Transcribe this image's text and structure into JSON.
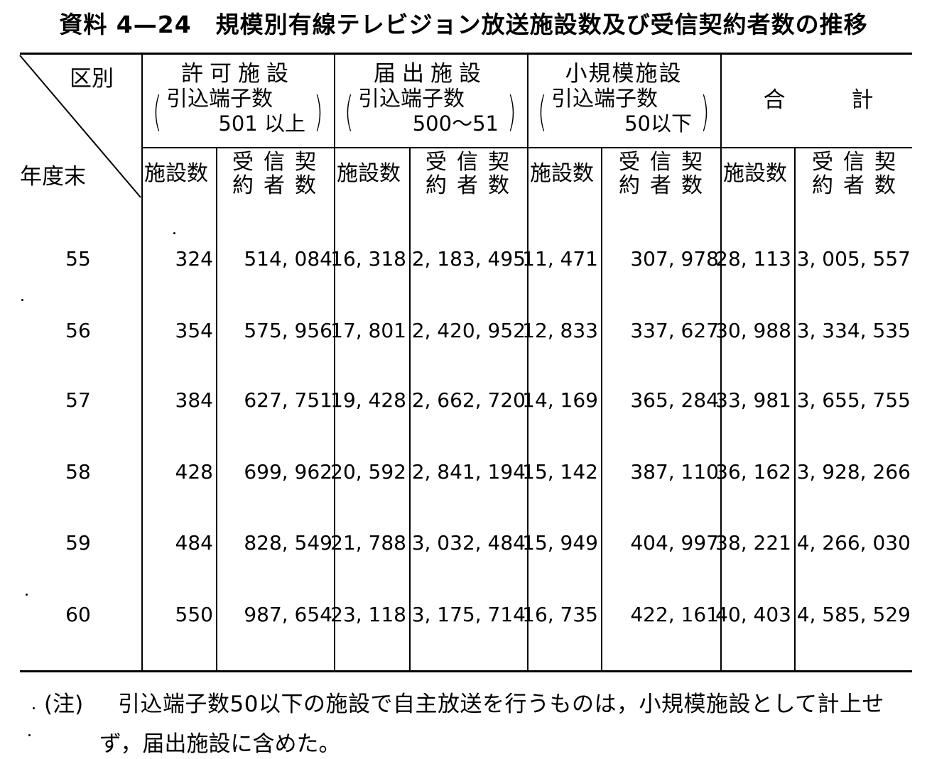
{
  "title": "資料 4—24　規模別有線テレビジョン放送施設数及び受信契約者数の推移",
  "header": {
    "corner_top": "区別",
    "corner_bottom": "年度末",
    "groups": [
      {
        "name": "許可施設",
        "sub1": "引込端子数",
        "sub2": "501 以上"
      },
      {
        "name": "届出施設",
        "sub1": "引込端子数",
        "sub2": "500〜51"
      },
      {
        "name": "小規模施設",
        "sub1": "引込端子数",
        "sub2": "50以下"
      },
      {
        "name": "合　　　計"
      }
    ],
    "col_facilities": "施設数",
    "col_subscribers_top": "受信契",
    "col_subscribers_bottom": "約者数"
  },
  "rows": [
    {
      "year": "55",
      "v": [
        "324",
        "514, 084",
        "16, 318",
        "2, 183, 495",
        "11, 471",
        "307, 978",
        "28, 113",
        "3, 005, 557"
      ]
    },
    {
      "year": "56",
      "v": [
        "354",
        "575, 956",
        "17, 801",
        "2, 420, 952",
        "12, 833",
        "337, 627",
        "30, 988",
        "3, 334, 535"
      ]
    },
    {
      "year": "57",
      "v": [
        "384",
        "627, 751",
        "19, 428",
        "2, 662, 720",
        "14, 169",
        "365, 284",
        "33, 981",
        "3, 655, 755"
      ]
    },
    {
      "year": "58",
      "v": [
        "428",
        "699, 962",
        "20, 592",
        "2, 841, 194",
        "15, 142",
        "387, 110",
        "36, 162",
        "3, 928, 266"
      ]
    },
    {
      "year": "59",
      "v": [
        "484",
        "828, 549",
        "21, 788",
        "3, 032, 484",
        "15, 949",
        "404, 997",
        "38, 221",
        "4, 266, 030"
      ]
    },
    {
      "year": "60",
      "v": [
        "550",
        "987, 654",
        "23, 118",
        "3, 175, 714",
        "16, 735",
        "422, 161",
        "40, 403",
        "4, 585, 529"
      ]
    }
  ],
  "note": {
    "label": "(注)",
    "line1": "引込端子数50以下の施設で自主放送を行うものは，小規模施設として計上せ",
    "line2": "ず，届出施設に含めた。"
  }
}
